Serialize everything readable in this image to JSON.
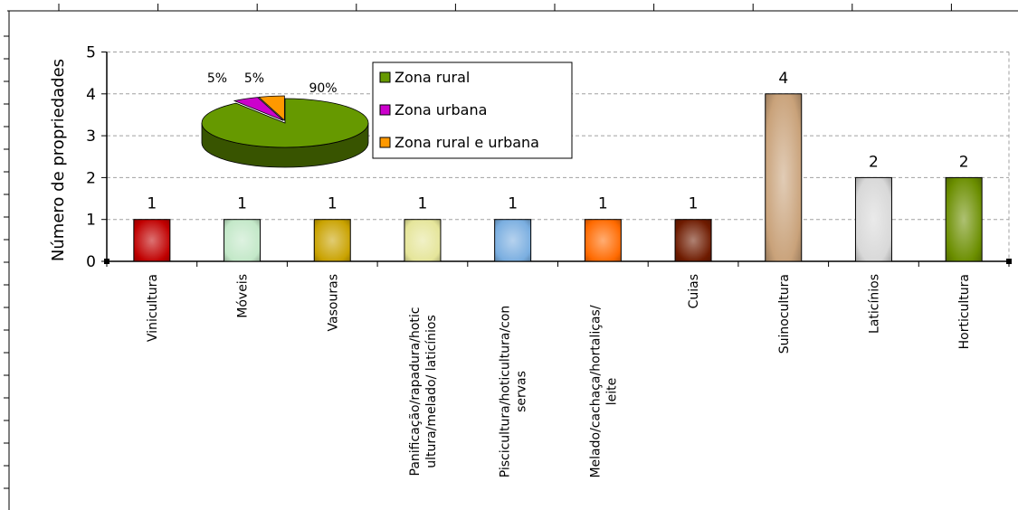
{
  "chart_data": [
    {
      "type": "bar",
      "title": "",
      "xlabel": "",
      "ylabel": "Número de propriedades",
      "ylim": [
        0,
        5
      ],
      "yticks": [
        "0",
        "1",
        "2",
        "3",
        "4",
        "5"
      ],
      "grid": "horizontal dashed",
      "categories": [
        [
          "Vinicultura"
        ],
        [
          "Móveis"
        ],
        [
          "Vasouras"
        ],
        [
          "Panificação/rapadura/hotic",
          "ultura/melado/ laticínios"
        ],
        [
          "Piscicultura/hoticultura/con",
          "servas"
        ],
        [
          "Melado/cachaça/hortaliças/",
          "leite"
        ],
        [
          "Cuias"
        ],
        [
          "Suinocultura"
        ],
        [
          "Laticínios"
        ],
        [
          "Horticultura"
        ]
      ],
      "values": [
        1,
        1,
        1,
        1,
        1,
        1,
        1,
        4,
        2,
        2
      ],
      "data_labels": [
        "1",
        "1",
        "1",
        "1",
        "1",
        "1",
        "1",
        "4",
        "2",
        "2"
      ],
      "colors": [
        "#c00000",
        "#c3e8c8",
        "#c9a200",
        "#e5e59a",
        "#7aaee0",
        "#ff6a00",
        "#6e1b00",
        "#c9a27a",
        "#d8d8d8",
        "#6b8e00"
      ]
    },
    {
      "type": "pie",
      "style": "3d",
      "categories": [
        "Zona rural",
        "Zona urbana",
        "Zona rural e urbana"
      ],
      "values": [
        90,
        5,
        5
      ],
      "data_labels": [
        "90%",
        "5%",
        "5%"
      ],
      "colors": [
        "#669900",
        "#cc00cc",
        "#ff9900"
      ],
      "legend": "right"
    }
  ]
}
